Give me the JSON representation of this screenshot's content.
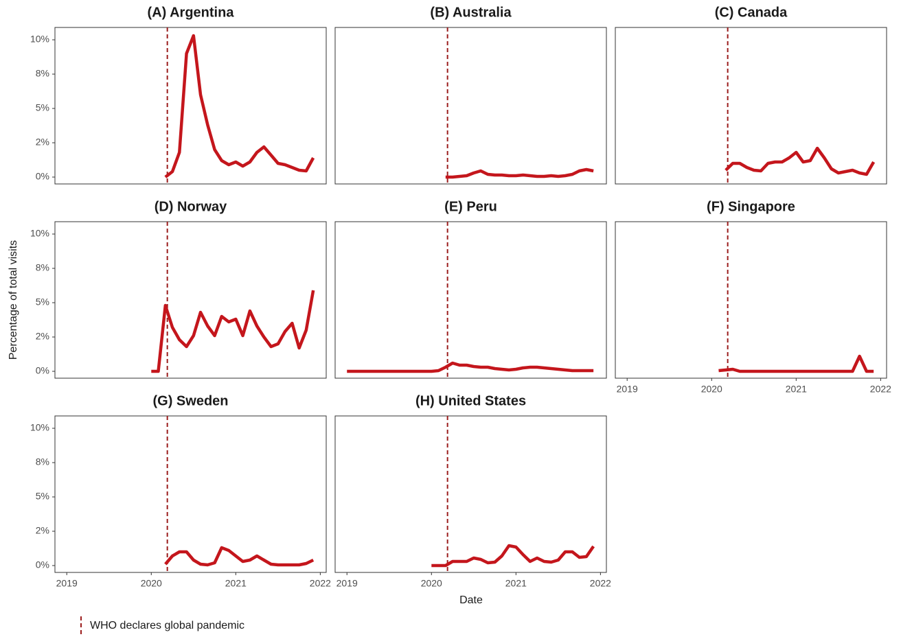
{
  "chart_data": {
    "type": "line",
    "ylabel": "Percentage of total visits",
    "xlabel": "Date",
    "color": "#c4161c",
    "xlim": [
      2018.86,
      2022.07
    ],
    "ylim": [
      -0.5,
      10.9
    ],
    "xticks": [
      2019,
      2020,
      2021,
      2022
    ],
    "yticks": [
      {
        "value": 0,
        "label": "0%"
      },
      {
        "value": 2.5,
        "label": "2%"
      },
      {
        "value": 5,
        "label": "5%"
      },
      {
        "value": 7.5,
        "label": "8%"
      },
      {
        "value": 10,
        "label": "10%"
      }
    ],
    "grid": false,
    "pandemic": {
      "x": 2020.19,
      "label": "WHO declares global pandemic",
      "color": "#9b1c1c"
    },
    "panels": [
      {
        "title": "(A) Argentina",
        "x": [
          2020.167,
          2020.25,
          2020.333,
          2020.417,
          2020.5,
          2020.583,
          2020.667,
          2020.75,
          2020.833,
          2020.917,
          2021,
          2021.083,
          2021.167,
          2021.25,
          2021.333,
          2021.417,
          2021.5,
          2021.583,
          2021.667,
          2021.75,
          2021.833,
          2021.917
        ],
        "values": [
          0,
          0.4,
          1.8,
          9,
          10.3,
          6,
          3.8,
          2,
          1.2,
          0.9,
          1.1,
          0.8,
          1.1,
          1.8,
          2.2,
          1.6,
          1.0,
          0.9,
          0.7,
          0.5,
          0.45,
          1.4
        ]
      },
      {
        "title": "(B) Australia",
        "x": [
          2020.167,
          2020.25,
          2020.333,
          2020.417,
          2020.5,
          2020.583,
          2020.667,
          2020.75,
          2020.833,
          2020.917,
          2021,
          2021.083,
          2021.167,
          2021.25,
          2021.333,
          2021.417,
          2021.5,
          2021.583,
          2021.667,
          2021.75,
          2021.833,
          2021.917
        ],
        "values": [
          0,
          0,
          0.05,
          0.1,
          0.3,
          0.45,
          0.2,
          0.15,
          0.15,
          0.1,
          0.1,
          0.15,
          0.1,
          0.05,
          0.05,
          0.1,
          0.05,
          0.1,
          0.2,
          0.45,
          0.55,
          0.45
        ]
      },
      {
        "title": "(C) Canada",
        "x": [
          2020.167,
          2020.25,
          2020.333,
          2020.417,
          2020.5,
          2020.583,
          2020.667,
          2020.75,
          2020.833,
          2020.917,
          2021,
          2021.083,
          2021.167,
          2021.25,
          2021.333,
          2021.417,
          2021.5,
          2021.583,
          2021.667,
          2021.75,
          2021.833,
          2021.917
        ],
        "values": [
          0.5,
          1.0,
          1.0,
          0.7,
          0.5,
          0.45,
          1.0,
          1.1,
          1.1,
          1.4,
          1.8,
          1.1,
          1.2,
          2.1,
          1.4,
          0.6,
          0.3,
          0.4,
          0.5,
          0.3,
          0.2,
          1.1
        ]
      },
      {
        "title": "(D) Norway",
        "x": [
          2020,
          2020.083,
          2020.167,
          2020.25,
          2020.333,
          2020.417,
          2020.5,
          2020.583,
          2020.667,
          2020.75,
          2020.833,
          2020.917,
          2021,
          2021.083,
          2021.167,
          2021.25,
          2021.333,
          2021.417,
          2021.5,
          2021.583,
          2021.667,
          2021.75,
          2021.833,
          2021.917
        ],
        "values": [
          0,
          0,
          4.8,
          3.2,
          2.3,
          1.8,
          2.6,
          4.3,
          3.3,
          2.6,
          4.0,
          3.6,
          3.8,
          2.6,
          4.4,
          3.3,
          2.5,
          1.8,
          2.0,
          2.9,
          3.5,
          1.7,
          3.0,
          5.9
        ]
      },
      {
        "title": "(E) Peru",
        "x": [
          2019,
          2019.083,
          2019.167,
          2019.25,
          2019.333,
          2019.417,
          2019.5,
          2019.583,
          2019.667,
          2019.75,
          2019.833,
          2019.917,
          2020,
          2020.083,
          2020.167,
          2020.25,
          2020.333,
          2020.417,
          2020.5,
          2020.583,
          2020.667,
          2020.75,
          2020.833,
          2020.917,
          2021,
          2021.083,
          2021.167,
          2021.25,
          2021.333,
          2021.417,
          2021.5,
          2021.583,
          2021.667,
          2021.75,
          2021.833,
          2021.917
        ],
        "values": [
          0,
          0,
          0,
          0,
          0,
          0,
          0,
          0,
          0,
          0,
          0,
          0,
          0,
          0.05,
          0.3,
          0.6,
          0.45,
          0.45,
          0.35,
          0.3,
          0.3,
          0.2,
          0.15,
          0.1,
          0.15,
          0.25,
          0.3,
          0.3,
          0.25,
          0.2,
          0.15,
          0.1,
          0.05,
          0.05,
          0.05,
          0.05
        ]
      },
      {
        "title": "(F) Singapore",
        "x": [
          2020.083,
          2020.167,
          2020.25,
          2020.333,
          2020.417,
          2020.5,
          2020.583,
          2020.667,
          2020.75,
          2020.833,
          2020.917,
          2021,
          2021.083,
          2021.167,
          2021.25,
          2021.333,
          2021.417,
          2021.5,
          2021.583,
          2021.667,
          2021.75,
          2021.833,
          2021.917
        ],
        "values": [
          0.05,
          0.1,
          0.15,
          0,
          0,
          0,
          0,
          0,
          0,
          0,
          0,
          0,
          0,
          0,
          0,
          0,
          0,
          0,
          0,
          0,
          1.1,
          0,
          0
        ]
      },
      {
        "title": "(G) Sweden",
        "x": [
          2020.167,
          2020.25,
          2020.333,
          2020.417,
          2020.5,
          2020.583,
          2020.667,
          2020.75,
          2020.833,
          2020.917,
          2021,
          2021.083,
          2021.167,
          2021.25,
          2021.333,
          2021.417,
          2021.5,
          2021.583,
          2021.667,
          2021.75,
          2021.833,
          2021.917
        ],
        "values": [
          0.1,
          0.7,
          1.0,
          1.0,
          0.4,
          0.1,
          0.05,
          0.2,
          1.3,
          1.1,
          0.7,
          0.3,
          0.4,
          0.7,
          0.4,
          0.1,
          0.05,
          0.05,
          0.05,
          0.05,
          0.15,
          0.4
        ]
      },
      {
        "title": "(H) United States",
        "x": [
          2020,
          2020.083,
          2020.167,
          2020.25,
          2020.333,
          2020.417,
          2020.5,
          2020.583,
          2020.667,
          2020.75,
          2020.833,
          2020.917,
          2021,
          2021.083,
          2021.167,
          2021.25,
          2021.333,
          2021.417,
          2021.5,
          2021.583,
          2021.667,
          2021.75,
          2021.833,
          2021.917
        ],
        "values": [
          0,
          0,
          0,
          0.3,
          0.3,
          0.3,
          0.55,
          0.45,
          0.2,
          0.25,
          0.7,
          1.45,
          1.35,
          0.8,
          0.3,
          0.55,
          0.3,
          0.25,
          0.4,
          1.0,
          1.0,
          0.6,
          0.65,
          1.4
        ]
      }
    ]
  }
}
